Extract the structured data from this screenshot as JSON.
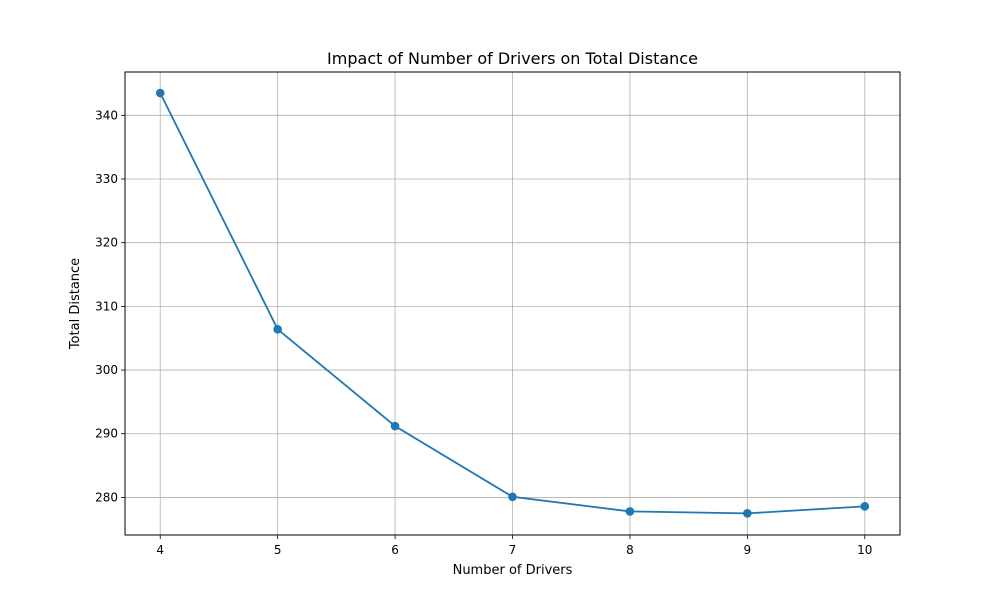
{
  "chart_data": {
    "type": "line",
    "title": "Impact of Number of Drivers on Total Distance",
    "xlabel": "Number of Drivers",
    "ylabel": "Total Distance",
    "x": [
      4,
      5,
      6,
      7,
      8,
      9,
      10
    ],
    "series": [
      {
        "name": "Total Distance",
        "values": [
          343.5,
          306.4,
          291.2,
          280.1,
          277.8,
          277.5,
          278.6
        ]
      }
    ],
    "xlim": [
      3.7,
      10.3
    ],
    "ylim": [
      274.1,
      346.8
    ],
    "xticks": [
      4,
      5,
      6,
      7,
      8,
      9,
      10
    ],
    "yticks": [
      280,
      290,
      300,
      310,
      320,
      330,
      340
    ],
    "grid": true,
    "colors": {
      "line": "#1f77b4",
      "grid": "#b0b0b0",
      "axes": "#000000"
    }
  }
}
